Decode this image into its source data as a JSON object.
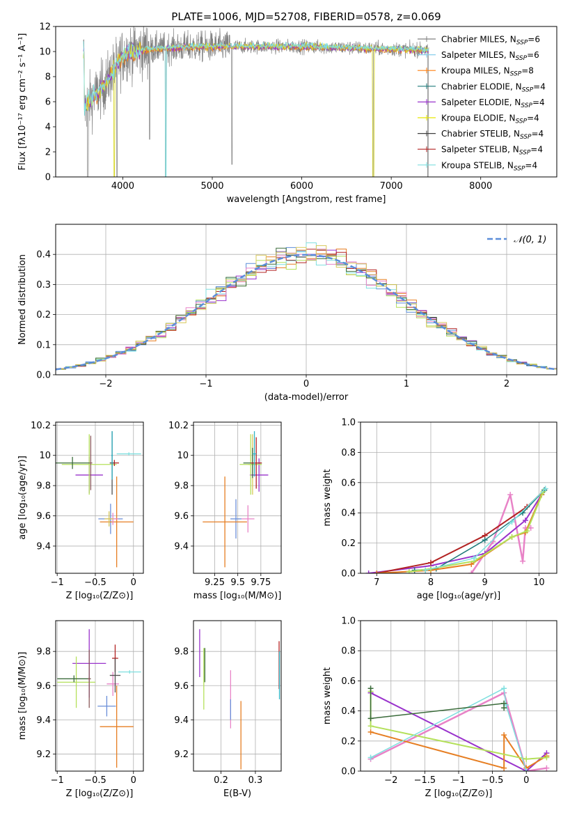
{
  "chart_data": [
    {
      "id": "spectrum",
      "type": "line",
      "title": "PLATE=1006, MJD=52708, FIBERID=0578, z=0.069",
      "xlabel": "wavelength [Angstrom, rest frame]",
      "ylabel": "Flux [fλ10⁻¹⁷ erg cm⁻² s⁻¹ A⁻¹]",
      "xlim": [
        3250,
        8850
      ],
      "ylim": [
        0,
        12
      ],
      "xticks": [
        4000,
        5000,
        6000,
        7000,
        8000
      ],
      "yticks": [
        0,
        2,
        4,
        6,
        8,
        10,
        12
      ],
      "grid": false,
      "legend_position": "lower-right",
      "series": [
        {
          "name": "Chabrier MILES, N",
          "sub": "SSP",
          "suffix": "=6",
          "color": "#808080"
        },
        {
          "name": "Salpeter MILES, N",
          "sub": "SSP",
          "suffix": "=6",
          "color": "#87ceeb"
        },
        {
          "name": "Kroupa MILES, N",
          "sub": "SSP",
          "suffix": "=8",
          "color": "#ff7f0e"
        },
        {
          "name": "Chabrier ELODIE, N",
          "sub": "SSP",
          "suffix": "=4",
          "color": "#1f7a7a"
        },
        {
          "name": "Salpeter ELODIE, N",
          "sub": "SSP",
          "suffix": "=4",
          "color": "#9932cc"
        },
        {
          "name": "Kroupa ELODIE, N",
          "sub": "SSP",
          "suffix": "=4",
          "color": "#e6e600"
        },
        {
          "name": "Chabrier STELIB, N",
          "sub": "SSP",
          "suffix": "=4",
          "color": "#404040"
        },
        {
          "name": "Salpeter STELIB, N",
          "sub": "SSP",
          "suffix": "=4",
          "color": "#b22222"
        },
        {
          "name": "Kroupa STELIB, N",
          "sub": "SSP",
          "suffix": "=4",
          "color": "#7fdfdf"
        }
      ],
      "continuum": {
        "x": [
          3570,
          3650,
          3800,
          3950,
          4050,
          4200,
          4500,
          5000,
          5500,
          6000,
          6500,
          7000,
          7500,
          8000,
          8300,
          8700
        ],
        "y": [
          5.6,
          6.2,
          7.3,
          9.2,
          10.0,
          10.1,
          10.3,
          10.4,
          10.4,
          10.4,
          10.3,
          10.2,
          10.1,
          9.9,
          9.7,
          9.8
        ]
      },
      "observed_range": [
        3560,
        7420
      ]
    },
    {
      "id": "residuals",
      "type": "line",
      "xlabel": "(data-model)/error",
      "ylabel": "Normed distribution",
      "xlim": [
        -2.5,
        2.5
      ],
      "ylim": [
        0,
        0.5
      ],
      "xticks": [
        -2,
        -1,
        0,
        1,
        2
      ],
      "yticks": [
        0.0,
        0.1,
        0.2,
        0.3,
        0.4
      ],
      "grid": true,
      "legend_position": "top-right",
      "legend_label": "𝒩(0, 1)",
      "reference": {
        "name": "N(0,1)",
        "mean": 0,
        "sigma": 1,
        "color": "#5b8dd9",
        "dash": true
      },
      "histogram_bin_width": 0.1
    },
    {
      "id": "age-vs-Z",
      "type": "scatter",
      "xlabel": "Z [log₁₀(Z/Z⊙)]",
      "ylabel": "age  [log₁₀(age/yr)]",
      "xlim": [
        -1.02,
        0.13
      ],
      "ylim": [
        9.22,
        10.22
      ],
      "xticks": [
        -1.0,
        -0.5,
        0.0
      ],
      "yticks": [
        9.4,
        9.6,
        9.8,
        10.0,
        10.2
      ],
      "grid": true,
      "points": [
        {
          "x": -0.3,
          "y": 9.58,
          "xerr": 0.16,
          "yerr": 0.1,
          "color": "#6a8ed8"
        },
        {
          "x": -0.22,
          "y": 9.56,
          "xerr": 0.22,
          "yerr": 0.3,
          "color": "#e67e22"
        },
        {
          "x": -0.27,
          "y": 9.58,
          "xerr": 0.07,
          "yerr": 0.04,
          "color": "#e883c7"
        },
        {
          "x": -0.32,
          "y": 9.58,
          "xerr": 0.06,
          "yerr": 0.05,
          "color": "#d8c85a"
        },
        {
          "x": -0.58,
          "y": 9.87,
          "xerr": 0.18,
          "yerr": 0.12,
          "color": "#9932cc"
        },
        {
          "x": -0.58,
          "y": 9.94,
          "xerr": 0.36,
          "yerr": 0.2,
          "color": "#b4e05a"
        },
        {
          "x": -0.8,
          "y": 9.95,
          "xerr": 0.22,
          "yerr": 0.04,
          "color": "#3a6b3a"
        },
        {
          "x": -0.56,
          "y": 9.95,
          "xerr": 0.02,
          "yerr": 0.18,
          "color": "#8b5a5a"
        },
        {
          "x": -0.25,
          "y": 9.95,
          "xerr": 0.06,
          "yerr": 0.02,
          "color": "#b22222"
        },
        {
          "x": -0.28,
          "y": 9.95,
          "xerr": 0.03,
          "yerr": 0.21,
          "color": "#4f4f4f"
        },
        {
          "x": -0.06,
          "y": 10.01,
          "xerr": 0.16,
          "yerr": 0.01,
          "color": "#7fdfdf"
        },
        {
          "x": -0.28,
          "y": 10.0,
          "xerr": 0.01,
          "yerr": 0.16,
          "color": "#2fb3c4"
        }
      ]
    },
    {
      "id": "age-vs-mass",
      "type": "scatter",
      "xlabel": "mass [log₁₀(M/M⊙)]",
      "ylabel": "",
      "xlim": [
        9.02,
        9.97
      ],
      "ylim": [
        9.22,
        10.22
      ],
      "xticks": [
        9.25,
        9.5,
        9.75
      ],
      "yticks": [
        9.4,
        9.6,
        9.8,
        10.0,
        10.2
      ],
      "grid": true,
      "points": [
        {
          "x": 9.48,
          "y": 9.58,
          "xerr": 0.06,
          "yerr": 0.13,
          "color": "#6a8ed8"
        },
        {
          "x": 9.36,
          "y": 9.56,
          "xerr": 0.24,
          "yerr": 0.3,
          "color": "#e67e22"
        },
        {
          "x": 9.61,
          "y": 9.58,
          "xerr": 0.07,
          "yerr": 0.09,
          "color": "#e883c7"
        },
        {
          "x": 9.66,
          "y": 9.94,
          "xerr": 0.05,
          "yerr": 0.2,
          "color": "#d8c85a"
        },
        {
          "x": 9.73,
          "y": 9.87,
          "xerr": 0.1,
          "yerr": 0.11,
          "color": "#9932cc"
        },
        {
          "x": 9.64,
          "y": 9.94,
          "xerr": 0.12,
          "yerr": 0.2,
          "color": "#b4e05a"
        },
        {
          "x": 9.66,
          "y": 9.95,
          "xerr": 0.1,
          "yerr": 0.1,
          "color": "#3a6b3a"
        },
        {
          "x": 9.7,
          "y": 9.95,
          "xerr": 0.06,
          "yerr": 0.17,
          "color": "#b22222"
        },
        {
          "x": 9.68,
          "y": 10.01,
          "xerr": 0.02,
          "yerr": 0.15,
          "color": "#2fb3c4"
        }
      ]
    },
    {
      "id": "mass-weight-vs-age",
      "type": "line",
      "xlabel": "age  [log₁₀(age/yr)]",
      "ylabel": "mass weight",
      "xlim": [
        6.7,
        10.33
      ],
      "ylim": [
        0,
        1.0
      ],
      "xticks": [
        7,
        8,
        9,
        10
      ],
      "yticks": [
        0.0,
        0.2,
        0.4,
        0.6,
        0.8,
        1.0
      ],
      "grid": true,
      "series": [
        {
          "color": "#e883c7",
          "lw": 2.5,
          "x": [
            8.75,
            9.15,
            9.47,
            9.7,
            9.75,
            9.85
          ],
          "y": [
            0.0,
            0.21,
            0.52,
            0.08,
            0.3,
            0.3
          ]
        },
        {
          "color": "#9932cc",
          "lw": 2,
          "x": [
            6.85,
            8.0,
            9.0,
            9.75,
            10.05
          ],
          "y": [
            0.0,
            0.05,
            0.13,
            0.35,
            0.52
          ]
        },
        {
          "color": "#b22222",
          "lw": 2,
          "x": [
            7.0,
            8.0,
            9.0,
            9.78,
            10.1
          ],
          "y": [
            0.0,
            0.07,
            0.25,
            0.44,
            0.55
          ]
        },
        {
          "color": "#1f7a7a",
          "lw": 1.5,
          "x": [
            7.7,
            8.1,
            9.0,
            9.7,
            10.1
          ],
          "y": [
            0.02,
            0.03,
            0.22,
            0.4,
            0.55
          ]
        },
        {
          "color": "#e67e22",
          "lw": 2,
          "x": [
            7.0,
            8.0,
            8.75,
            9.5,
            9.75,
            10.05
          ],
          "y": [
            0.0,
            0.02,
            0.06,
            0.24,
            0.27,
            0.52
          ]
        },
        {
          "color": "#b4e05a",
          "lw": 2,
          "x": [
            7.6,
            8.0,
            8.8,
            9.5,
            9.78,
            10.08
          ],
          "y": [
            0.01,
            0.03,
            0.08,
            0.24,
            0.28,
            0.54
          ]
        },
        {
          "color": "#7fdfdf",
          "lw": 1.5,
          "x": [
            7.9,
            8.8,
            9.5,
            10.12
          ],
          "y": [
            0.02,
            0.1,
            0.34,
            0.56
          ]
        }
      ]
    },
    {
      "id": "mass-vs-Z",
      "type": "scatter",
      "xlabel": "Z [log₁₀(Z/Z⊙)]",
      "ylabel": "mass [log₁₀(M/M⊙)]",
      "xlim": [
        -1.02,
        0.13
      ],
      "ylim": [
        9.1,
        9.98
      ],
      "xticks": [
        -1.0,
        -0.5,
        0.0
      ],
      "yticks": [
        9.2,
        9.4,
        9.6,
        9.8
      ],
      "grid": true,
      "points": [
        {
          "x": -0.35,
          "y": 9.48,
          "xerr": 0.12,
          "yerr": 0.06,
          "color": "#6a8ed8"
        },
        {
          "x": -0.22,
          "y": 9.36,
          "xerr": 0.22,
          "yerr": 0.24,
          "color": "#e67e22"
        },
        {
          "x": -0.27,
          "y": 9.61,
          "xerr": 0.08,
          "yerr": 0.07,
          "color": "#e883c7"
        },
        {
          "x": -0.58,
          "y": 9.73,
          "xerr": 0.22,
          "yerr": 0.2,
          "color": "#9932cc"
        },
        {
          "x": -0.75,
          "y": 9.62,
          "xerr": 0.25,
          "yerr": 0.15,
          "color": "#b4e05a"
        },
        {
          "x": -0.78,
          "y": 9.64,
          "xerr": 0.22,
          "yerr": 0.02,
          "color": "#3a6b3a"
        },
        {
          "x": -0.58,
          "y": 9.64,
          "xerr": 0.02,
          "yerr": 0.17,
          "color": "#8b5a5a"
        },
        {
          "x": -0.24,
          "y": 9.76,
          "xerr": 0.04,
          "yerr": 0.08,
          "color": "#b22222"
        },
        {
          "x": -0.24,
          "y": 9.66,
          "xerr": 0.07,
          "yerr": 0.1,
          "color": "#4f4f4f"
        },
        {
          "x": -0.05,
          "y": 9.68,
          "xerr": 0.15,
          "yerr": 0.01,
          "color": "#7fdfdf"
        }
      ]
    },
    {
      "id": "mass-vs-EBV",
      "type": "scatter",
      "xlabel": "E(B-V)",
      "ylabel": "",
      "xlim": [
        0.12,
        0.375
      ],
      "ylim": [
        9.1,
        9.98
      ],
      "xticks": [
        0.2,
        0.3
      ],
      "yticks": [
        9.2,
        9.4,
        9.6,
        9.8
      ],
      "grid": true,
      "points": [
        {
          "x": 0.138,
          "y": 9.79,
          "xerr": 0,
          "yerr": 0.14,
          "color": "#9932cc"
        },
        {
          "x": 0.15,
          "y": 9.64,
          "xerr": 0,
          "yerr": 0.18,
          "color": "#b4e05a"
        },
        {
          "x": 0.153,
          "y": 9.72,
          "xerr": 0,
          "yerr": 0.1,
          "color": "#3a6b3a"
        },
        {
          "x": 0.228,
          "y": 9.52,
          "xerr": 0,
          "yerr": 0.17,
          "color": "#e883c7"
        },
        {
          "x": 0.228,
          "y": 9.46,
          "xerr": 0,
          "yerr": 0.06,
          "color": "#6a8ed8"
        },
        {
          "x": 0.258,
          "y": 9.31,
          "xerr": 0,
          "yerr": 0.2,
          "color": "#e67e22"
        },
        {
          "x": 0.369,
          "y": 9.72,
          "xerr": 0,
          "yerr": 0.14,
          "color": "#b22222"
        },
        {
          "x": 0.37,
          "y": 9.66,
          "xerr": 0,
          "yerr": 0.14,
          "color": "#2fb3c4"
        }
      ]
    },
    {
      "id": "mass-weight-vs-Z",
      "type": "line",
      "xlabel": "Z [log₁₀(Z/Z⊙)]",
      "ylabel": "mass weight",
      "xlim": [
        -2.45,
        0.45
      ],
      "ylim": [
        0,
        1.0
      ],
      "xticks": [
        -2.0,
        -1.5,
        -1.0,
        -0.5,
        0.0
      ],
      "yticks": [
        0.0,
        0.2,
        0.4,
        0.6,
        0.8,
        1.0
      ],
      "grid": true,
      "series": [
        {
          "color": "#e883c7",
          "lw": 2.5,
          "x": [
            -2.3,
            -0.33,
            0.0,
            0.3
          ],
          "y": [
            0.08,
            0.52,
            0.0,
            0.02
          ]
        },
        {
          "color": "#9932cc",
          "lw": 2,
          "x": [
            -2.3,
            0.0,
            0.3
          ],
          "y": [
            0.52,
            0.0,
            0.12
          ]
        },
        {
          "color": "#e67e22",
          "lw": 2,
          "x": [
            -2.3,
            -0.33,
            -0.33,
            0.0,
            0.3
          ],
          "y": [
            0.26,
            0.02,
            0.24,
            0.02,
            0.1
          ]
        },
        {
          "color": "#b4e05a",
          "lw": 2,
          "x": [
            -2.3,
            -2.3,
            0.0,
            0.3
          ],
          "y": [
            0.53,
            0.3,
            0.08,
            0.09
          ]
        },
        {
          "color": "#7fdfdf",
          "lw": 1.5,
          "x": [
            -2.3,
            -0.33,
            -0.3,
            0.0
          ],
          "y": [
            0.09,
            0.55,
            0.44,
            0.0
          ]
        },
        {
          "color": "#3a6b3a",
          "lw": 1.5,
          "x": [
            -2.3,
            -2.3,
            -0.33,
            -0.33
          ],
          "y": [
            0.55,
            0.35,
            0.45,
            0.42
          ]
        }
      ]
    }
  ]
}
